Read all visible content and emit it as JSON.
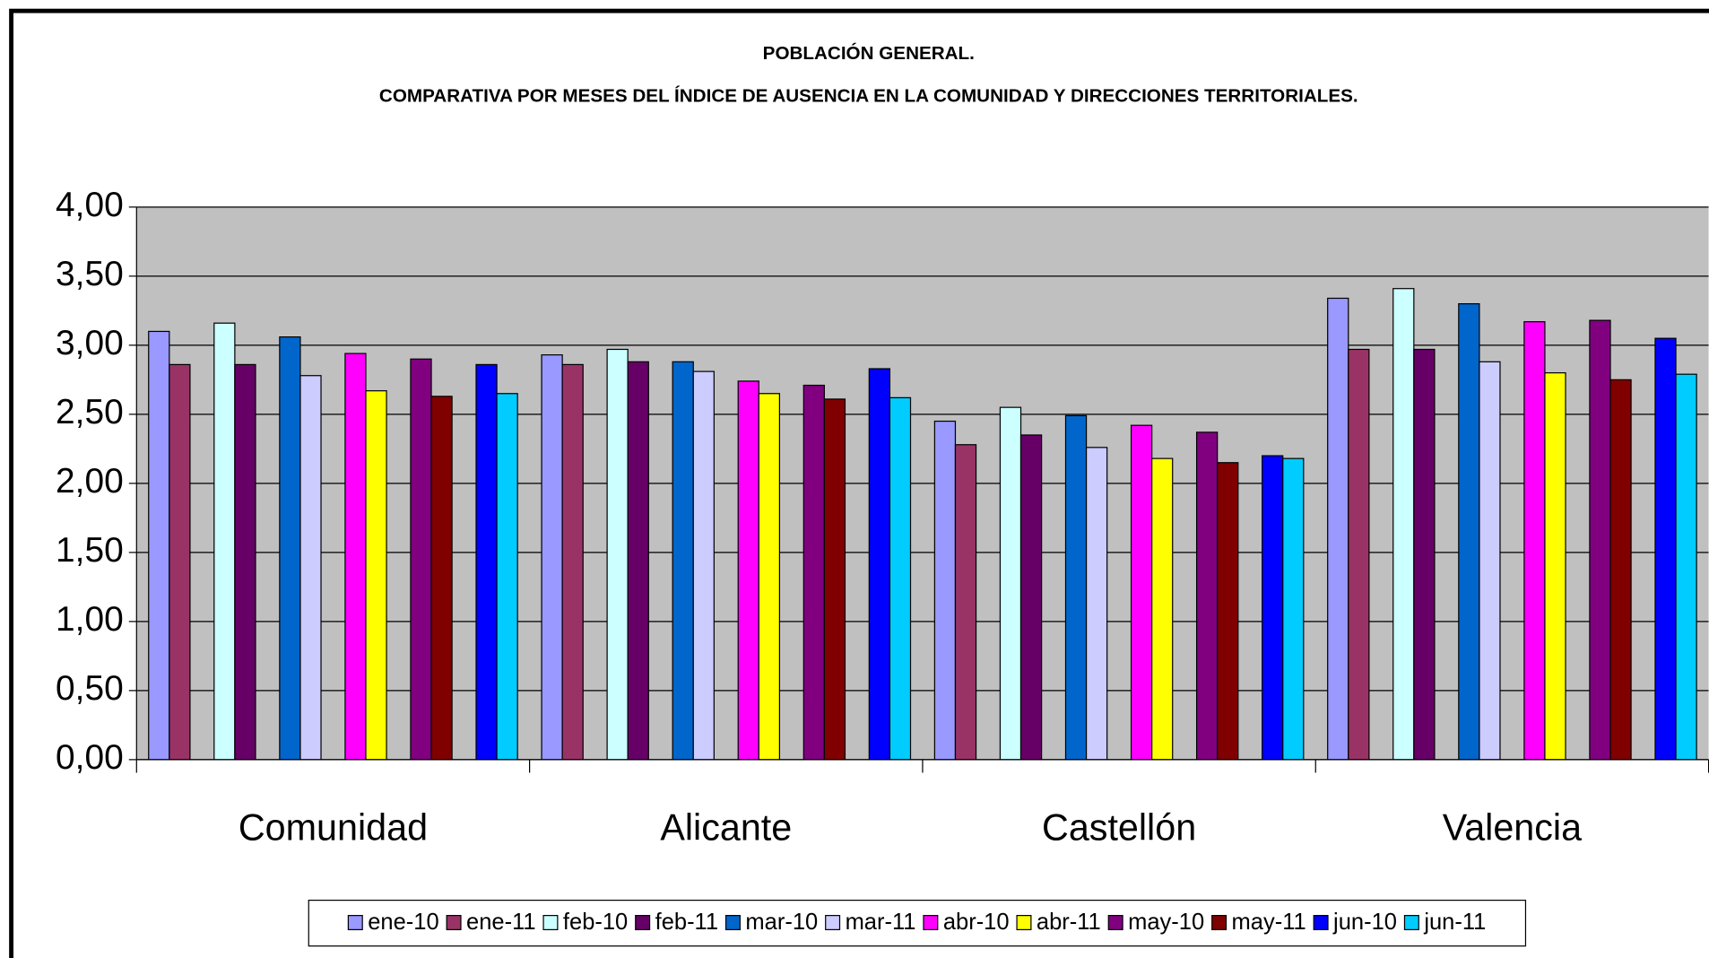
{
  "chart_data": {
    "type": "bar",
    "title": "POBLACIÓN GENERAL.",
    "subtitle": "COMPARATIVA POR MESES DEL ÍNDICE DE AUSENCIA EN LA COMUNIDAD Y DIRECCIONES TERRITORIALES.",
    "categories": [
      "Comunidad",
      "Alicante",
      "Castellón",
      "Valencia"
    ],
    "series": [
      {
        "name": "ene-10",
        "color": "#9999ff",
        "values": [
          3.1,
          2.93,
          2.45,
          3.34
        ]
      },
      {
        "name": "ene-11",
        "color": "#993366",
        "values": [
          2.86,
          2.86,
          2.28,
          2.97
        ]
      },
      {
        "name": "feb-10",
        "color": "#ccffff",
        "values": [
          3.16,
          2.97,
          2.55,
          3.41
        ]
      },
      {
        "name": "feb-11",
        "color": "#660066",
        "values": [
          2.86,
          2.88,
          2.35,
          2.97
        ]
      },
      {
        "name": "mar-10",
        "color": "#0066cc",
        "values": [
          3.06,
          2.88,
          2.49,
          3.3
        ]
      },
      {
        "name": "mar-11",
        "color": "#ccccff",
        "values": [
          2.78,
          2.81,
          2.26,
          2.88
        ]
      },
      {
        "name": "abr-10",
        "color": "#ff00ff",
        "values": [
          2.94,
          2.74,
          2.42,
          3.17
        ]
      },
      {
        "name": "abr-11",
        "color": "#ffff00",
        "values": [
          2.67,
          2.65,
          2.18,
          2.8
        ]
      },
      {
        "name": "may-10",
        "color": "#800080",
        "values": [
          2.9,
          2.71,
          2.37,
          3.18
        ]
      },
      {
        "name": "may-11",
        "color": "#800000",
        "values": [
          2.63,
          2.61,
          2.15,
          2.75
        ]
      },
      {
        "name": "jun-10",
        "color": "#0000ff",
        "values": [
          2.86,
          2.83,
          2.2,
          3.05
        ]
      },
      {
        "name": "jun-11",
        "color": "#00ccff",
        "values": [
          2.65,
          2.62,
          2.18,
          2.79
        ]
      }
    ],
    "ylim": [
      0,
      4
    ],
    "yticks": [
      {
        "value": 0,
        "label": "0,00"
      },
      {
        "value": 0.5,
        "label": "0,50"
      },
      {
        "value": 1,
        "label": "1,00"
      },
      {
        "value": 1.5,
        "label": "1,50"
      },
      {
        "value": 2,
        "label": "2,00"
      },
      {
        "value": 2.5,
        "label": "2,50"
      },
      {
        "value": 3,
        "label": "3,00"
      },
      {
        "value": 3.5,
        "label": "3,50"
      },
      {
        "value": 4,
        "label": "4,00"
      }
    ],
    "grid": true,
    "legend": "bottom"
  }
}
